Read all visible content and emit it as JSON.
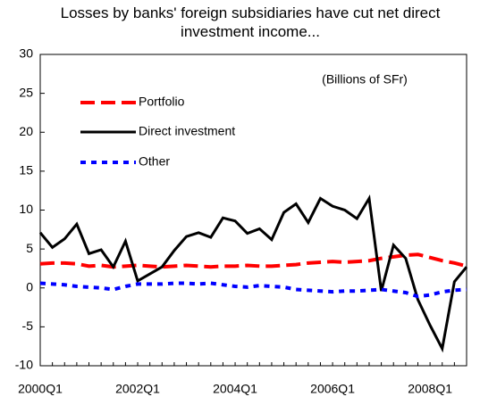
{
  "chart_data": {
    "type": "line",
    "title": "Losses by banks' foreign subsidiaries have cut net direct investment income...",
    "annotation": "(Billions of SFr)",
    "categories": [
      "2000Q1",
      null,
      null,
      null,
      null,
      null,
      null,
      null,
      "2002Q1",
      null,
      null,
      null,
      null,
      null,
      null,
      null,
      "2004Q1",
      null,
      null,
      null,
      null,
      null,
      null,
      null,
      "2006Q1",
      null,
      null,
      null,
      null,
      null,
      null,
      null,
      "2008Q1",
      null,
      null,
      null
    ],
    "series": [
      {
        "name": "Portfolio",
        "color": "#ff0000",
        "style": "dashed",
        "values": [
          3.1,
          3.2,
          3.2,
          3.1,
          2.8,
          2.9,
          2.7,
          2.8,
          2.9,
          2.8,
          2.7,
          2.8,
          2.9,
          2.8,
          2.7,
          2.8,
          2.8,
          2.9,
          2.8,
          2.8,
          2.9,
          3.0,
          3.2,
          3.3,
          3.4,
          3.3,
          3.4,
          3.5,
          3.8,
          4.0,
          4.2,
          4.3,
          3.9,
          3.5,
          3.2,
          2.8
        ]
      },
      {
        "name": "Direct investment",
        "color": "#000000",
        "style": "solid",
        "values": [
          7.1,
          5.2,
          6.3,
          8.2,
          4.4,
          4.9,
          2.7,
          6.0,
          0.9,
          1.8,
          2.7,
          4.8,
          6.6,
          7.1,
          6.5,
          9.0,
          8.6,
          7.0,
          7.6,
          6.2,
          9.7,
          10.8,
          8.4,
          11.5,
          10.5,
          10.0,
          8.9,
          11.5,
          -0.4,
          5.5,
          3.8,
          -1.5,
          -4.8,
          -7.8,
          0.8,
          2.7
        ]
      },
      {
        "name": "Other",
        "color": "#0000ff",
        "style": "dotted",
        "values": [
          0.6,
          0.5,
          0.4,
          0.2,
          0.1,
          0.0,
          -0.2,
          0.2,
          0.5,
          0.5,
          0.5,
          0.6,
          0.6,
          0.5,
          0.6,
          0.4,
          0.2,
          0.1,
          0.3,
          0.2,
          0.1,
          -0.2,
          -0.3,
          -0.4,
          -0.5,
          -0.4,
          -0.4,
          -0.3,
          -0.2,
          -0.4,
          -0.6,
          -1.1,
          -0.9,
          -0.5,
          -0.3,
          -0.2
        ]
      }
    ],
    "ylim": [
      -10,
      30
    ],
    "yticks": [
      -10,
      -5,
      0,
      5,
      10,
      15,
      20,
      25,
      30
    ],
    "grid": false
  }
}
